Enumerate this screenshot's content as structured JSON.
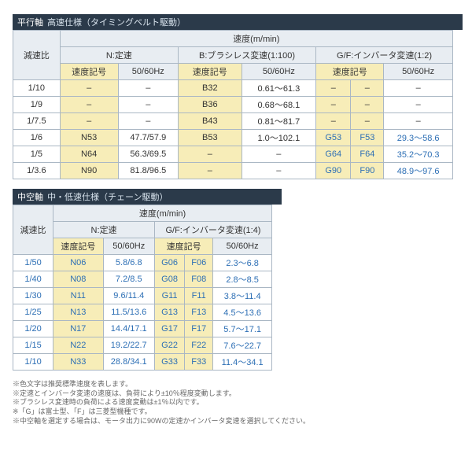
{
  "table1": {
    "header_dark": "平行軸",
    "header_light": "高速仕様（タイミングベルト駆動）",
    "top": "速度(m/min)",
    "ratio_label": "減速比",
    "groupN": "N:定速",
    "groupB": "B:ブラシレス変速(1:100)",
    "groupGF": "G/F:インバータ変速(1:2)",
    "speed_code": "速度記号",
    "hz": "50/60Hz",
    "rows": [
      {
        "ratio": "1/10",
        "n_code": "–",
        "n_hz": "–",
        "b_code": "B32",
        "b_hz": "0.61～61.3",
        "g": "–",
        "f": "–",
        "gf_hz": "–"
      },
      {
        "ratio": "1/9",
        "n_code": "–",
        "n_hz": "–",
        "b_code": "B36",
        "b_hz": "0.68～68.1",
        "g": "–",
        "f": "–",
        "gf_hz": "–"
      },
      {
        "ratio": "1/7.5",
        "n_code": "–",
        "n_hz": "–",
        "b_code": "B43",
        "b_hz": "0.81～81.7",
        "g": "–",
        "f": "–",
        "gf_hz": "–"
      },
      {
        "ratio": "1/6",
        "n_code": "N53",
        "n_hz": "47.7/57.9",
        "b_code": "B53",
        "b_hz": "1.0～102.1",
        "g": "G53",
        "f": "F53",
        "gf_hz": "29.3～58.6"
      },
      {
        "ratio": "1/5",
        "n_code": "N64",
        "n_hz": "56.3/69.5",
        "b_code": "–",
        "b_hz": "–",
        "g": "G64",
        "f": "F64",
        "gf_hz": "35.2～70.3"
      },
      {
        "ratio": "1/3.6",
        "n_code": "N90",
        "n_hz": "81.8/96.5",
        "b_code": "–",
        "b_hz": "–",
        "g": "G90",
        "f": "F90",
        "gf_hz": "48.9～97.6"
      }
    ]
  },
  "table2": {
    "header_dark": "中空軸",
    "header_light": "中・低速仕様（チェーン駆動）",
    "top": "速度(m/min)",
    "ratio_label": "減速比",
    "groupN": "N:定速",
    "groupGF": "G/F:インバータ変速(1:4)",
    "speed_code": "速度記号",
    "hz": "50/60Hz",
    "rows": [
      {
        "ratio": "1/50",
        "n": "N06",
        "nhz": "5.8/6.8",
        "g": "G06",
        "f": "F06",
        "gfhz": "2.3～6.8"
      },
      {
        "ratio": "1/40",
        "n": "N08",
        "nhz": "7.2/8.5",
        "g": "G08",
        "f": "F08",
        "gfhz": "2.8～8.5"
      },
      {
        "ratio": "1/30",
        "n": "N11",
        "nhz": "9.6/11.4",
        "g": "G11",
        "f": "F11",
        "gfhz": "3.8～11.4"
      },
      {
        "ratio": "1/25",
        "n": "N13",
        "nhz": "11.5/13.6",
        "g": "G13",
        "f": "F13",
        "gfhz": "4.5～13.6"
      },
      {
        "ratio": "1/20",
        "n": "N17",
        "nhz": "14.4/17.1",
        "g": "G17",
        "f": "F17",
        "gfhz": "5.7～17.1"
      },
      {
        "ratio": "1/15",
        "n": "N22",
        "nhz": "19.2/22.7",
        "g": "G22",
        "f": "F22",
        "gfhz": "7.6～22.7"
      },
      {
        "ratio": "1/10",
        "n": "N33",
        "nhz": "28.8/34.1",
        "g": "G33",
        "f": "F33",
        "gfhz": "11.4～34.1"
      }
    ]
  },
  "notes": [
    "※色文字は推奨標準速度を表します。",
    "※定速とインバータ変速の速度は、負荷により±10％程度変動します。",
    "※ブラシレス変速時の負荷による速度変動は±1％以内です。",
    "※「G」は富士型、「F」は三菱型機種です。",
    "※中空軸を選定する場合は、モータ出力に90Wの定速かインバータ変速を選択してください。"
  ]
}
